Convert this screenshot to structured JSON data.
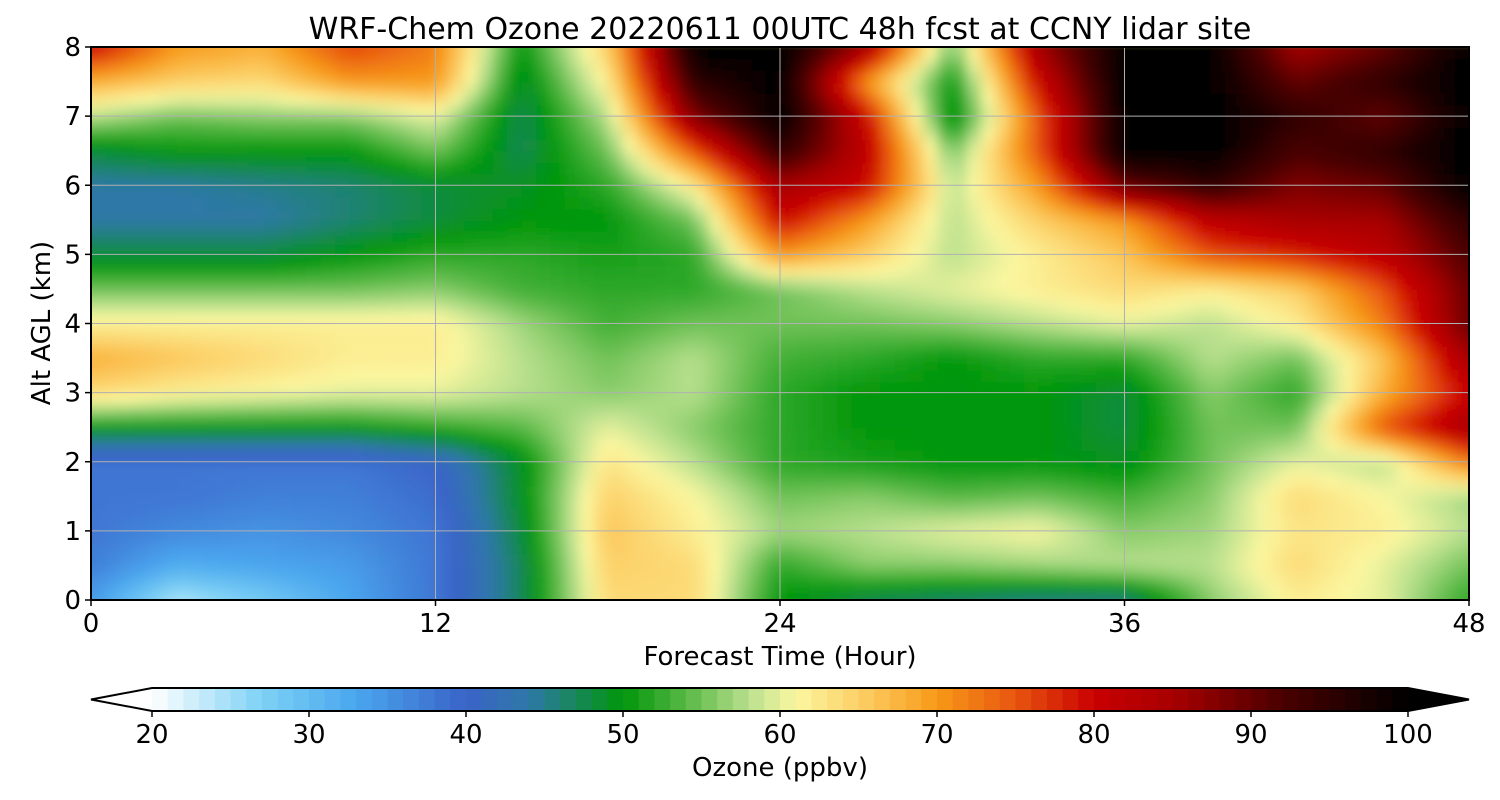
{
  "chart_data": {
    "type": "heatmap",
    "title": "WRF-Chem Ozone  20220611 00UTC 48h fcst at CCNY lidar site",
    "xlabel": "Forecast Time (Hour)",
    "ylabel": "Alt AGL (km)",
    "xlim": [
      0,
      48
    ],
    "ylim": [
      0,
      8
    ],
    "x_ticks": [
      "0",
      "12",
      "24",
      "36",
      "48"
    ],
    "y_ticks": [
      "0",
      "1",
      "2",
      "3",
      "4",
      "5",
      "6",
      "7",
      "8"
    ],
    "grid": true,
    "x_hours": [
      0,
      3,
      6,
      9,
      12,
      15,
      18,
      21,
      24,
      27,
      30,
      33,
      36,
      39,
      42,
      45,
      48
    ],
    "y_km": [
      0,
      0.5,
      1,
      1.5,
      2,
      2.5,
      3,
      3.5,
      4,
      4.5,
      5,
      5.5,
      6,
      6.5,
      7,
      7.5,
      8
    ],
    "z_ozone_ppbv": [
      [
        34,
        24,
        28,
        33,
        38,
        47,
        64,
        64,
        50,
        47,
        46,
        45,
        45,
        56,
        62,
        60,
        52
      ],
      [
        37,
        32,
        33,
        34,
        38,
        47,
        65,
        64,
        52,
        56,
        56,
        57,
        58,
        58,
        64,
        60,
        55
      ],
      [
        38,
        36,
        35,
        36,
        38,
        48,
        66,
        62,
        57,
        58,
        60,
        61,
        56,
        57,
        63,
        62,
        58
      ],
      [
        38,
        38,
        37,
        37,
        39,
        49,
        65,
        61,
        55,
        56,
        54,
        55,
        53,
        56,
        64,
        61,
        57
      ],
      [
        38,
        38,
        38,
        38,
        40,
        49,
        63,
        58,
        52,
        51,
        50,
        50,
        49,
        55,
        60,
        58,
        72
      ],
      [
        50,
        50,
        50,
        50,
        52,
        54,
        60,
        56,
        52,
        50,
        50,
        50,
        48,
        55,
        55,
        75,
        85
      ],
      [
        64,
        62,
        61,
        60,
        60,
        58,
        56,
        58,
        52,
        50,
        50,
        50,
        48,
        56,
        52,
        68,
        80
      ],
      [
        68,
        66,
        64,
        62,
        62,
        58,
        55,
        58,
        53,
        52,
        50,
        52,
        52,
        58,
        55,
        66,
        85
      ],
      [
        62,
        62,
        62,
        62,
        62,
        57,
        53,
        55,
        55,
        55,
        56,
        58,
        60,
        58,
        62,
        72,
        90
      ],
      [
        55,
        55,
        55,
        55,
        56,
        53,
        52,
        52,
        55,
        58,
        60,
        62,
        64,
        62,
        65,
        75,
        90
      ],
      [
        48,
        48,
        48,
        50,
        52,
        52,
        51,
        52,
        70,
        65,
        58,
        62,
        66,
        75,
        78,
        82,
        92
      ],
      [
        44,
        44,
        44,
        46,
        48,
        50,
        50,
        55,
        80,
        70,
        58,
        65,
        70,
        82,
        85,
        85,
        95
      ],
      [
        44,
        44,
        45,
        46,
        48,
        49,
        52,
        62,
        85,
        80,
        58,
        70,
        90,
        95,
        88,
        90,
        100
      ],
      [
        48,
        50,
        50,
        50,
        55,
        47,
        55,
        75,
        95,
        82,
        55,
        75,
        100,
        100,
        92,
        95,
        100
      ],
      [
        58,
        55,
        56,
        56,
        60,
        47,
        58,
        88,
        100,
        80,
        48,
        75,
        100,
        100,
        95,
        90,
        100
      ],
      [
        68,
        65,
        64,
        70,
        70,
        48,
        62,
        95,
        100,
        70,
        50,
        80,
        100,
        100,
        90,
        95,
        100
      ],
      [
        80,
        70,
        68,
        76,
        72,
        50,
        65,
        100,
        100,
        85,
        55,
        85,
        100,
        100,
        85,
        90,
        100
      ]
    ],
    "colorbar": {
      "label": "Ozone  (ppbv)",
      "ticks": [
        "20",
        "30",
        "40",
        "50",
        "60",
        "70",
        "80",
        "90",
        "100"
      ],
      "vmin": 20,
      "vmax": 100,
      "extend": "both",
      "stops": [
        {
          "v": 20,
          "c": "#ffffff"
        },
        {
          "v": 27,
          "c": "#7ed2f5"
        },
        {
          "v": 33,
          "c": "#4aa6ee"
        },
        {
          "v": 40,
          "c": "#3a63c8"
        },
        {
          "v": 44,
          "c": "#2e78a8"
        },
        {
          "v": 50,
          "c": "#00960a"
        },
        {
          "v": 54,
          "c": "#58b845"
        },
        {
          "v": 58,
          "c": "#b9e08e"
        },
        {
          "v": 61,
          "c": "#fbf7a0"
        },
        {
          "v": 65,
          "c": "#fcd068"
        },
        {
          "v": 70,
          "c": "#f79a18"
        },
        {
          "v": 75,
          "c": "#e85510"
        },
        {
          "v": 80,
          "c": "#c90000"
        },
        {
          "v": 85,
          "c": "#a80000"
        },
        {
          "v": 92,
          "c": "#4a0000"
        },
        {
          "v": 100,
          "c": "#000000"
        }
      ]
    }
  }
}
